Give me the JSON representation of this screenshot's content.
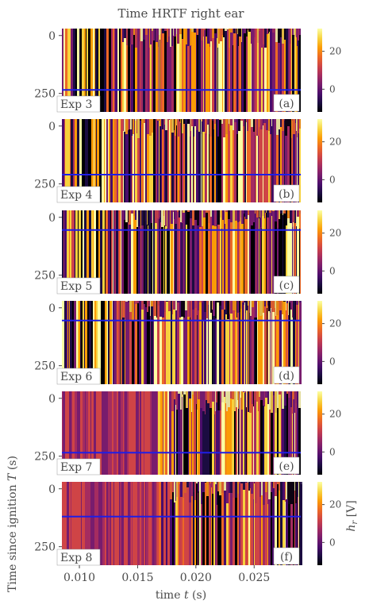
{
  "title": "Time HRTF right ear",
  "y_label_main": "Time since ignition ",
  "y_label_var": "T",
  "y_label_unit": " (s)",
  "x_label_main": "time ",
  "x_label_var": "t",
  "x_label_unit": " (s)",
  "colorbar_label_var": "h",
  "colorbar_label_sub": "r",
  "colorbar_label_unit": " [V]",
  "colormap": [
    "#000004",
    "#1b0c41",
    "#4a0c6b",
    "#781c6d",
    "#a52c60",
    "#cf4446",
    "#ed6925",
    "#fb9b06",
    "#f7d13d",
    "#fcffa4"
  ],
  "chart_data": {
    "type": "heatmap",
    "x_range": [
      0.0085,
      0.029
    ],
    "x_ticks": [
      "0.010",
      "0.015",
      "0.020",
      "0.025"
    ],
    "x_tick_values": [
      0.01,
      0.015,
      0.02,
      0.025
    ],
    "y_range": [
      -30,
      330
    ],
    "y_ticks": [
      "0",
      "250"
    ],
    "y_tick_values": [
      0,
      250
    ],
    "colorbar_ticks": [
      "20",
      "0"
    ],
    "colorbar_tick_values": [
      20,
      0
    ],
    "colorbar_range": [
      -12,
      32
    ],
    "panels": [
      {
        "experiment": "Exp 3",
        "letter": "(a)",
        "line_T": 235
      },
      {
        "experiment": "Exp 4",
        "letter": "(b)",
        "line_T": 210
      },
      {
        "experiment": "Exp 5",
        "letter": "(c)",
        "line_T": 55
      },
      {
        "experiment": "Exp 6",
        "letter": "(d)",
        "line_T": 55
      },
      {
        "experiment": "Exp 7",
        "letter": "(e)",
        "line_T": 235
      },
      {
        "experiment": "Exp 8",
        "letter": "(f)",
        "line_T": 120
      }
    ]
  }
}
